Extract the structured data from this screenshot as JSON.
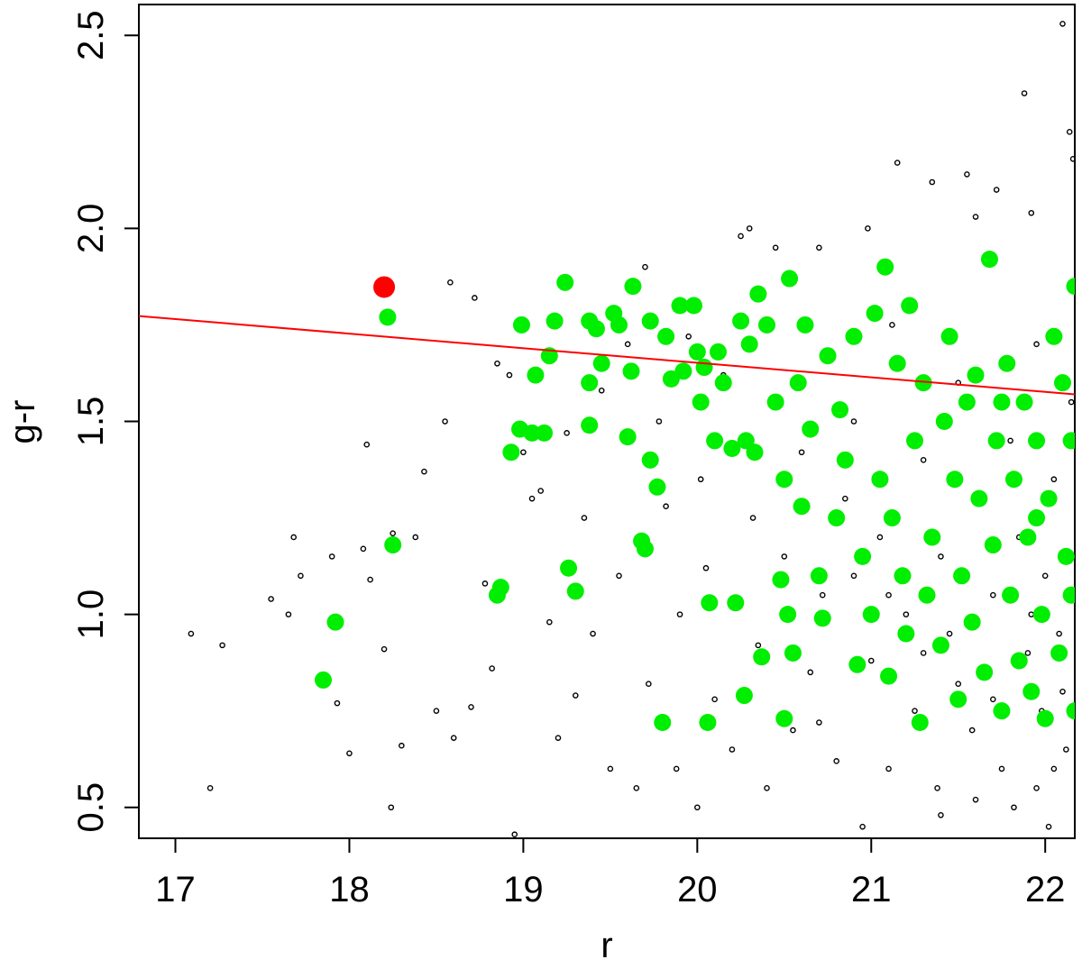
{
  "chart_data": {
    "type": "scatter",
    "xlabel": "r",
    "ylabel": "g-r",
    "xlim": [
      16.79,
      22.17
    ],
    "ylim": [
      0.42,
      2.58
    ],
    "xticks": [
      17,
      18,
      19,
      20,
      21,
      22
    ],
    "yticks": [
      0.5,
      {
        "value": 1,
        "label": "1.0"
      },
      1.5,
      {
        "value": 2,
        "label": "2.0"
      },
      2.5
    ],
    "series": [
      {
        "color": "#000000",
        "marker": "open-circle",
        "x": [
          17.09,
          17.2,
          17.27,
          17.55,
          17.65,
          17.68,
          17.72,
          17.9,
          17.93,
          18.0,
          18.08,
          18.1,
          18.12,
          18.2,
          18.24,
          18.25,
          18.3,
          18.38,
          18.43,
          18.5,
          18.55,
          18.58,
          18.6,
          18.7,
          18.72,
          18.78,
          18.82,
          18.85,
          18.92,
          18.95,
          19.0,
          19.05,
          19.1,
          19.15,
          19.2,
          19.25,
          19.3,
          19.35,
          19.4,
          19.45,
          19.5,
          19.55,
          19.6,
          19.65,
          19.7,
          19.72,
          19.78,
          19.82,
          19.88,
          19.9,
          19.95,
          20.0,
          20.02,
          20.05,
          20.1,
          20.15,
          20.2,
          20.25,
          20.3,
          20.32,
          20.35,
          20.4,
          20.45,
          20.5,
          20.55,
          20.6,
          20.65,
          20.7,
          20.72,
          20.8,
          20.85,
          20.9,
          20.95,
          20.98,
          21.0,
          21.05,
          21.1,
          21.12,
          21.15,
          21.2,
          21.25,
          21.3,
          21.35,
          21.38,
          21.4,
          21.45,
          21.5,
          21.55,
          21.58,
          21.6,
          21.62,
          21.65,
          21.7,
          21.72,
          21.75,
          21.8,
          21.82,
          21.85,
          21.88,
          21.9,
          21.92,
          21.95,
          21.98,
          22.0,
          22.02,
          22.05,
          22.08,
          22.1,
          22.12,
          22.14,
          22.15,
          22.16,
          22.1,
          21.92,
          21.7,
          21.5,
          21.3,
          21.1,
          20.9,
          20.7,
          21.95,
          22.05,
          21.6,
          21.4
        ],
        "values": [
          0.95,
          0.55,
          0.92,
          1.04,
          1.0,
          1.2,
          1.1,
          1.15,
          0.77,
          0.64,
          1.17,
          1.44,
          1.09,
          0.91,
          0.5,
          1.21,
          0.66,
          1.2,
          1.37,
          0.75,
          1.5,
          1.86,
          0.68,
          0.76,
          1.82,
          1.08,
          0.86,
          1.65,
          1.62,
          0.43,
          1.42,
          1.3,
          1.32,
          0.98,
          0.68,
          1.47,
          0.79,
          1.25,
          0.95,
          1.58,
          0.6,
          1.1,
          1.7,
          0.55,
          1.9,
          0.82,
          1.5,
          1.28,
          0.6,
          1.0,
          1.72,
          0.5,
          1.35,
          1.12,
          0.78,
          1.62,
          0.65,
          1.98,
          2.0,
          1.25,
          0.92,
          0.55,
          1.95,
          1.15,
          0.7,
          1.42,
          0.85,
          1.95,
          1.05,
          0.62,
          1.3,
          1.5,
          0.45,
          2.0,
          0.88,
          1.2,
          0.6,
          1.75,
          2.17,
          1.0,
          0.75,
          1.4,
          2.12,
          0.55,
          1.15,
          0.95,
          1.6,
          2.14,
          0.7,
          2.03,
          1.3,
          0.85,
          1.05,
          2.1,
          0.6,
          1.45,
          0.5,
          1.2,
          2.35,
          0.9,
          2.04,
          1.7,
          0.75,
          1.1,
          0.45,
          1.35,
          0.95,
          2.53,
          0.65,
          2.25,
          1.55,
          2.18,
          0.8,
          1.0,
          0.78,
          0.82,
          0.9,
          1.05,
          1.1,
          0.72,
          0.55,
          0.6,
          0.52,
          0.48
        ]
      },
      {
        "color": "#00ee00",
        "marker": "filled-circle",
        "x": [
          17.85,
          17.92,
          18.22,
          18.25,
          18.85,
          18.87,
          18.93,
          18.98,
          18.99,
          19.05,
          19.07,
          19.12,
          19.15,
          19.18,
          19.24,
          19.26,
          19.3,
          19.38,
          19.38,
          19.38,
          19.42,
          19.45,
          19.52,
          19.55,
          19.6,
          19.62,
          19.63,
          19.68,
          19.7,
          19.73,
          19.73,
          19.77,
          19.8,
          19.82,
          19.85,
          19.9,
          19.92,
          19.98,
          20.0,
          20.02,
          20.04,
          20.06,
          20.07,
          20.1,
          20.12,
          20.15,
          20.2,
          20.22,
          20.25,
          20.27,
          20.28,
          20.3,
          20.33,
          20.35,
          20.37,
          20.4,
          20.45,
          20.48,
          20.5,
          20.5,
          20.52,
          20.53,
          20.55,
          20.58,
          20.6,
          20.62,
          20.65,
          20.7,
          20.72,
          20.75,
          20.8,
          20.82,
          20.85,
          20.9,
          20.92,
          20.95,
          21.0,
          21.02,
          21.05,
          21.08,
          21.1,
          21.12,
          21.15,
          21.18,
          21.2,
          21.22,
          21.25,
          21.28,
          21.3,
          21.32,
          21.35,
          21.4,
          21.42,
          21.45,
          21.48,
          21.5,
          21.52,
          21.55,
          21.58,
          21.6,
          21.62,
          21.65,
          21.68,
          21.7,
          21.72,
          21.75,
          21.78,
          21.8,
          21.82,
          21.85,
          21.88,
          21.9,
          21.92,
          21.95,
          21.98,
          22.0,
          22.02,
          22.05,
          22.08,
          22.1,
          22.12,
          22.15,
          22.17,
          22.17,
          22.15,
          21.95,
          21.75
        ],
        "values": [
          0.83,
          0.98,
          1.77,
          1.18,
          1.05,
          1.07,
          1.42,
          1.48,
          1.75,
          1.47,
          1.62,
          1.47,
          1.67,
          1.76,
          1.86,
          1.12,
          1.06,
          1.49,
          1.6,
          1.76,
          1.74,
          1.65,
          1.78,
          1.75,
          1.46,
          1.63,
          1.85,
          1.19,
          1.17,
          1.4,
          1.76,
          1.33,
          0.72,
          1.72,
          1.61,
          1.8,
          1.63,
          1.8,
          1.68,
          1.55,
          1.64,
          0.72,
          1.03,
          1.45,
          1.68,
          1.6,
          1.43,
          1.03,
          1.76,
          0.79,
          1.45,
          1.7,
          1.42,
          1.83,
          0.89,
          1.75,
          1.55,
          1.09,
          1.35,
          0.73,
          1.0,
          1.87,
          0.9,
          1.6,
          1.28,
          1.75,
          1.48,
          1.1,
          0.99,
          1.67,
          1.25,
          1.53,
          1.4,
          1.72,
          0.87,
          1.15,
          1.0,
          1.78,
          1.35,
          1.9,
          0.84,
          1.25,
          1.65,
          1.1,
          0.95,
          1.8,
          1.45,
          0.72,
          1.6,
          1.05,
          1.2,
          0.92,
          1.5,
          1.72,
          1.35,
          0.78,
          1.1,
          1.55,
          0.98,
          1.62,
          1.3,
          0.85,
          1.92,
          1.18,
          1.45,
          0.75,
          1.65,
          1.05,
          1.35,
          0.88,
          1.55,
          1.2,
          0.8,
          1.45,
          1.0,
          0.73,
          1.3,
          1.72,
          0.9,
          1.6,
          1.15,
          1.45,
          0.75,
          1.85,
          1.05,
          1.25,
          1.55
        ]
      },
      {
        "color": "#ff0000",
        "marker": "large-filled-circle",
        "x": [
          18.2
        ],
        "values": [
          1.848
        ]
      },
      {
        "color": "#ff0000",
        "marker": "line",
        "x": [
          16.79,
          22.17
        ],
        "values": [
          1.773,
          1.57
        ]
      }
    ]
  }
}
